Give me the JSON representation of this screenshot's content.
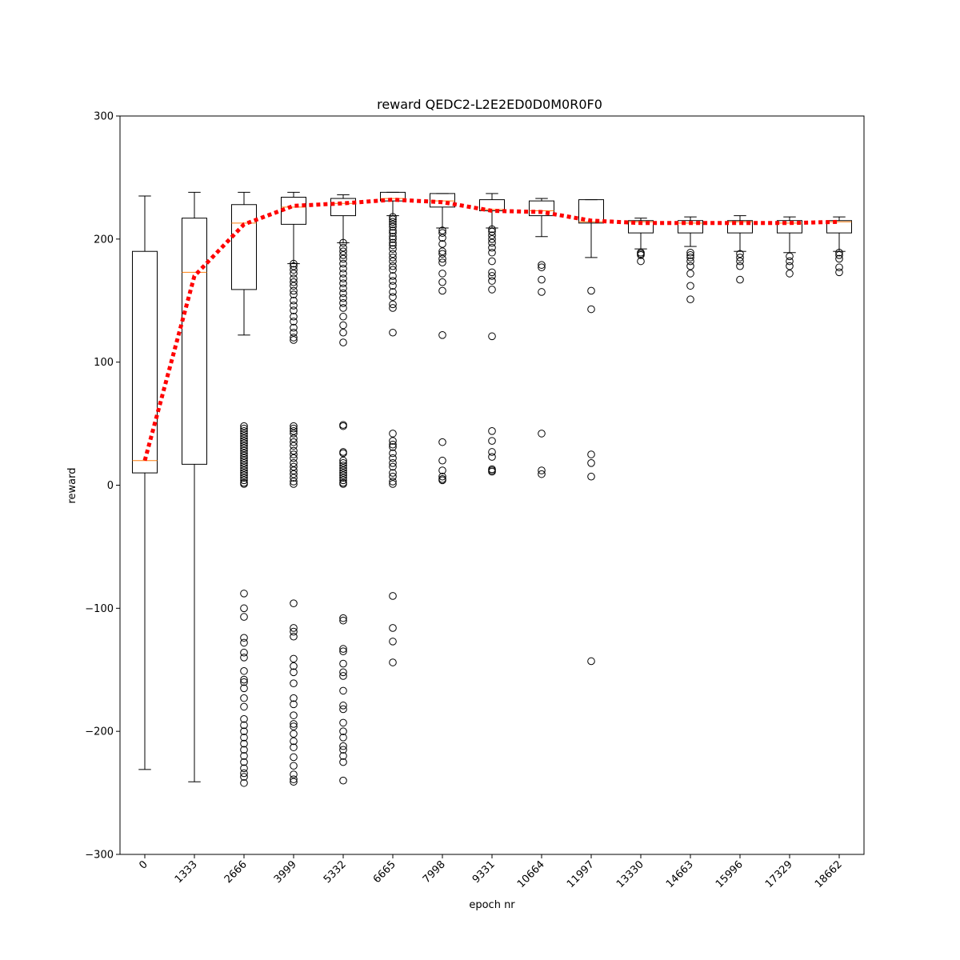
{
  "chart_data": {
    "type": "box",
    "title": "reward QEDC2-L2E2ED0D0M0R0F0",
    "xlabel": "epoch nr",
    "ylabel": "reward",
    "ylim": [
      -300,
      300
    ],
    "yticks": [
      -300,
      -200,
      -100,
      0,
      100,
      200,
      300
    ],
    "ytick_labels": [
      "−300",
      "−200",
      "−100",
      "0",
      "100",
      "200",
      "300"
    ],
    "categories": [
      "0",
      "1333",
      "2666",
      "3999",
      "5332",
      "6665",
      "7998",
      "9331",
      "10664",
      "11997",
      "13330",
      "14663",
      "15996",
      "17329",
      "18662"
    ],
    "boxes": [
      {
        "whisker_low": -231,
        "q1": 10,
        "median": 20,
        "q3": 190,
        "whisker_high": 235,
        "mean": 20,
        "outliers": []
      },
      {
        "whisker_low": -241,
        "q1": 17,
        "median": 173,
        "q3": 217,
        "whisker_high": 238,
        "mean": 170,
        "outliers": []
      },
      {
        "whisker_low": 122,
        "q1": 159,
        "median": 213,
        "q3": 228,
        "whisker_high": 238,
        "mean": 212,
        "outliers": [
          48,
          46,
          44,
          42,
          40,
          38,
          36,
          34,
          32,
          30,
          28,
          26,
          24,
          22,
          20,
          18,
          16,
          14,
          12,
          10,
          8,
          6,
          4,
          2,
          1,
          -88,
          -100,
          -107,
          -124,
          -128,
          -136,
          -140,
          -151,
          -158,
          -160,
          -165,
          -173,
          -180,
          -190,
          -195,
          -200,
          -205,
          -210,
          -215,
          -220,
          -225,
          -230,
          -234,
          -237,
          -242
        ]
      },
      {
        "whisker_low": 180,
        "q1": 212,
        "median": 226,
        "q3": 234,
        "whisker_high": 238,
        "mean": 227,
        "outliers": [
          180,
          178,
          175,
          172,
          168,
          165,
          162,
          158,
          155,
          150,
          146,
          142,
          137,
          133,
          128,
          124,
          120,
          118,
          48,
          46,
          44,
          42,
          38,
          35,
          32,
          28,
          25,
          22,
          18,
          15,
          12,
          9,
          6,
          3,
          1,
          -96,
          -116,
          -119,
          -123,
          -141,
          -147,
          -152,
          -161,
          -173,
          -178,
          -187,
          -194,
          -196,
          -202,
          -208,
          -213,
          -221,
          -228,
          -235,
          -239,
          -241
        ]
      },
      {
        "whisker_low": 197,
        "q1": 219,
        "median": 229,
        "q3": 233,
        "whisker_high": 236,
        "mean": 229,
        "outliers": [
          197,
          193,
          190,
          187,
          184,
          180,
          176,
          172,
          168,
          164,
          160,
          156,
          152,
          148,
          144,
          137,
          130,
          124,
          116,
          49,
          48,
          27,
          26,
          20,
          18,
          16,
          14,
          12,
          10,
          8,
          6,
          4,
          2,
          1,
          -108,
          -110,
          -133,
          -135,
          -145,
          -152,
          -155,
          -167,
          -179,
          -182,
          -193,
          -200,
          -205,
          -212,
          -215,
          -220,
          -225,
          -240
        ]
      },
      {
        "whisker_low": 219,
        "q1": 231,
        "median": 233,
        "q3": 238,
        "whisker_high": 238,
        "mean": 232,
        "outliers": [
          218,
          216,
          214,
          212,
          210,
          207,
          205,
          202,
          200,
          197,
          195,
          192,
          188,
          185,
          182,
          178,
          175,
          170,
          166,
          162,
          157,
          153,
          147,
          144,
          124,
          42,
          36,
          33,
          31,
          26,
          22,
          18,
          15,
          10,
          7,
          3,
          1,
          -90,
          -116,
          -127,
          -144
        ]
      },
      {
        "whisker_low": 209,
        "q1": 226,
        "median": 231,
        "q3": 237,
        "whisker_high": 237,
        "mean": 230,
        "outliers": [
          207,
          205,
          201,
          196,
          190,
          188,
          184,
          181,
          172,
          165,
          158,
          122,
          35,
          20,
          12,
          7,
          5,
          4
        ]
      },
      {
        "whisker_low": 209,
        "q1": 223,
        "median": 224,
        "q3": 232,
        "whisker_high": 237,
        "mean": 223,
        "outliers": [
          208,
          206,
          203,
          200,
          197,
          193,
          189,
          182,
          173,
          170,
          166,
          159,
          121,
          44,
          36,
          27,
          23,
          13,
          12,
          11
        ]
      },
      {
        "whisker_low": 202,
        "q1": 219,
        "median": 223,
        "q3": 231,
        "whisker_high": 233,
        "mean": 222,
        "outliers": [
          179,
          177,
          167,
          157,
          42,
          12,
          9
        ]
      },
      {
        "whisker_low": 185,
        "q1": 213,
        "median": 214,
        "q3": 232,
        "whisker_high": 232,
        "mean": 215,
        "outliers": [
          158,
          143,
          25,
          18,
          7,
          -143
        ]
      },
      {
        "whisker_low": 192,
        "q1": 205,
        "median": 214,
        "q3": 215,
        "whisker_high": 217,
        "mean": 213,
        "outliers": [
          189,
          188,
          187,
          182
        ]
      },
      {
        "whisker_low": 194,
        "q1": 205,
        "median": 213,
        "q3": 215,
        "whisker_high": 218,
        "mean": 213,
        "outliers": [
          189,
          187,
          185,
          182,
          178,
          172,
          162,
          151
        ]
      },
      {
        "whisker_low": 190,
        "q1": 205,
        "median": 214,
        "q3": 215,
        "whisker_high": 219,
        "mean": 213,
        "outliers": [
          188,
          185,
          182,
          178,
          167
        ]
      },
      {
        "whisker_low": 189,
        "q1": 205,
        "median": 213,
        "q3": 215,
        "whisker_high": 218,
        "mean": 213,
        "outliers": [
          186,
          182,
          178,
          172
        ]
      },
      {
        "whisker_low": 190,
        "q1": 205,
        "median": 214,
        "q3": 215,
        "whisker_high": 218,
        "mean": 214,
        "outliers": [
          189,
          187,
          184,
          177,
          173
        ]
      }
    ],
    "mean_line": {
      "color": "#ff0000",
      "style": "dotted"
    },
    "colors": {
      "box": "#000000",
      "median": "#ff7f0e",
      "mean_line": "#ff0000"
    },
    "legend": "none",
    "grid": false
  }
}
